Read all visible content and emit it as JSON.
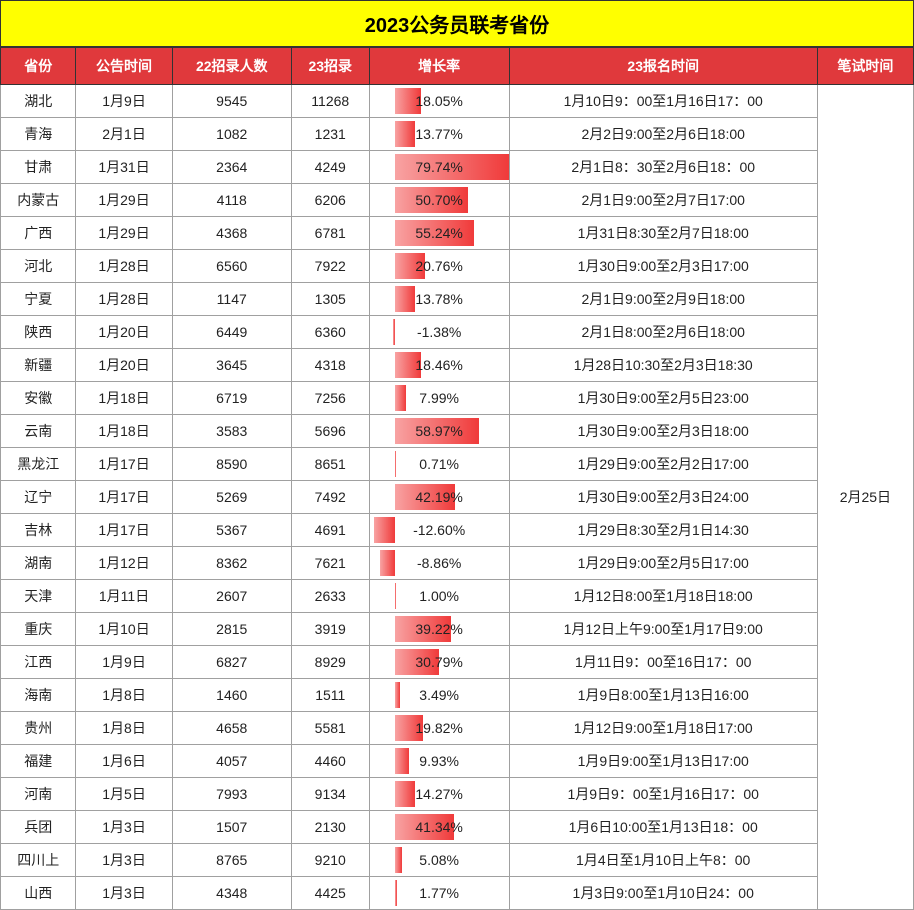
{
  "title": "2023公务员联考省份",
  "columns": {
    "province": "省份",
    "announce": "公告时间",
    "recruit22": "22招录人数",
    "recruit23": "23招录",
    "growth": "增长率",
    "signup": "23报名时间",
    "exam": "笔试时间"
  },
  "exam_date": "2月25日",
  "growth_axis_center": 0.18,
  "colors": {
    "header_bg": "#e0393c",
    "header_fg": "#ffffff",
    "title_bg": "#ffff00",
    "bar_start": "#f8a3a3",
    "bar_end": "#f03a3a",
    "border": "#a0a0a0"
  },
  "rows": [
    {
      "province": "湖北",
      "announce": "1月9日",
      "r22": "9545",
      "r23": "11268",
      "growth_val": 18.05,
      "growth": "18.05%",
      "signup": "1月10日9：00至1月16日17：00"
    },
    {
      "province": "青海",
      "announce": "2月1日",
      "r22": "1082",
      "r23": "1231",
      "growth_val": 13.77,
      "growth": "13.77%",
      "signup": "2月2日9:00至2月6日18:00"
    },
    {
      "province": "甘肃",
      "announce": "1月31日",
      "r22": "2364",
      "r23": "4249",
      "growth_val": 79.74,
      "growth": "79.74%",
      "signup": "2月1日8：30至2月6日18：00"
    },
    {
      "province": "内蒙古",
      "announce": "1月29日",
      "r22": "4118",
      "r23": "6206",
      "growth_val": 50.7,
      "growth": "50.70%",
      "signup": "2月1日9:00至2月7日17:00"
    },
    {
      "province": "广西",
      "announce": "1月29日",
      "r22": "4368",
      "r23": "6781",
      "growth_val": 55.24,
      "growth": "55.24%",
      "signup": "1月31日8:30至2月7日18:00"
    },
    {
      "province": "河北",
      "announce": "1月28日",
      "r22": "6560",
      "r23": "7922",
      "growth_val": 20.76,
      "growth": "20.76%",
      "signup": "1月30日9:00至2月3日17:00"
    },
    {
      "province": "宁夏",
      "announce": "1月28日",
      "r22": "1147",
      "r23": "1305",
      "growth_val": 13.78,
      "growth": "13.78%",
      "signup": "2月1日9:00至2月9日18:00"
    },
    {
      "province": "陕西",
      "announce": "1月20日",
      "r22": "6449",
      "r23": "6360",
      "growth_val": -1.38,
      "growth": "-1.38%",
      "signup": "2月1日8:00至2月6日18:00"
    },
    {
      "province": "新疆",
      "announce": "1月20日",
      "r22": "3645",
      "r23": "4318",
      "growth_val": 18.46,
      "growth": "18.46%",
      "signup": "1月28日10:30至2月3日18:30"
    },
    {
      "province": "安徽",
      "announce": "1月18日",
      "r22": "6719",
      "r23": "7256",
      "growth_val": 7.99,
      "growth": "7.99%",
      "signup": "1月30日9:00至2月5日23:00"
    },
    {
      "province": "云南",
      "announce": "1月18日",
      "r22": "3583",
      "r23": "5696",
      "growth_val": 58.97,
      "growth": "58.97%",
      "signup": "1月30日9:00至2月3日18:00"
    },
    {
      "province": "黑龙江",
      "announce": "1月17日",
      "r22": "8590",
      "r23": "8651",
      "growth_val": 0.71,
      "growth": "0.71%",
      "signup": "1月29日9:00至2月2日17:00"
    },
    {
      "province": "辽宁",
      "announce": "1月17日",
      "r22": "5269",
      "r23": "7492",
      "growth_val": 42.19,
      "growth": "42.19%",
      "signup": "1月30日9:00至2月3日24:00"
    },
    {
      "province": "吉林",
      "announce": "1月17日",
      "r22": "5367",
      "r23": "4691",
      "growth_val": -12.6,
      "growth": "-12.60%",
      "signup": "1月29日8:30至2月1日14:30"
    },
    {
      "province": "湖南",
      "announce": "1月12日",
      "r22": "8362",
      "r23": "7621",
      "growth_val": -8.86,
      "growth": "-8.86%",
      "signup": "1月29日9:00至2月5日17:00"
    },
    {
      "province": "天津",
      "announce": "1月11日",
      "r22": "2607",
      "r23": "2633",
      "growth_val": 1.0,
      "growth": "1.00%",
      "signup": "1月12日8:00至1月18日18:00"
    },
    {
      "province": "重庆",
      "announce": "1月10日",
      "r22": "2815",
      "r23": "3919",
      "growth_val": 39.22,
      "growth": "39.22%",
      "signup": "1月12日上午9:00至1月17日9:00"
    },
    {
      "province": "江西",
      "announce": "1月9日",
      "r22": "6827",
      "r23": "8929",
      "growth_val": 30.79,
      "growth": "30.79%",
      "signup": "1月11日9：00至16日17：00"
    },
    {
      "province": "海南",
      "announce": "1月8日",
      "r22": "1460",
      "r23": "1511",
      "growth_val": 3.49,
      "growth": "3.49%",
      "signup": "1月9日8:00至1月13日16:00"
    },
    {
      "province": "贵州",
      "announce": "1月8日",
      "r22": "4658",
      "r23": "5581",
      "growth_val": 19.82,
      "growth": "19.82%",
      "signup": "1月12日9:00至1月18日17:00"
    },
    {
      "province": "福建",
      "announce": "1月6日",
      "r22": "4057",
      "r23": "4460",
      "growth_val": 9.93,
      "growth": "9.93%",
      "signup": "1月9日9:00至1月13日17:00"
    },
    {
      "province": "河南",
      "announce": "1月5日",
      "r22": "7993",
      "r23": "9134",
      "growth_val": 14.27,
      "growth": "14.27%",
      "signup": "1月9日9：00至1月16日17：00"
    },
    {
      "province": "兵团",
      "announce": "1月3日",
      "r22": "1507",
      "r23": "2130",
      "growth_val": 41.34,
      "growth": "41.34%",
      "signup": "1月6日10:00至1月13日18：00"
    },
    {
      "province": "四川上",
      "announce": "1月3日",
      "r22": "8765",
      "r23": "9210",
      "growth_val": 5.08,
      "growth": "5.08%",
      "signup": "1月4日至1月10日上午8：00"
    },
    {
      "province": "山西",
      "announce": "1月3日",
      "r22": "4348",
      "r23": "4425",
      "growth_val": 1.77,
      "growth": "1.77%",
      "signup": "1月3日9:00至1月10日24：00"
    }
  ]
}
